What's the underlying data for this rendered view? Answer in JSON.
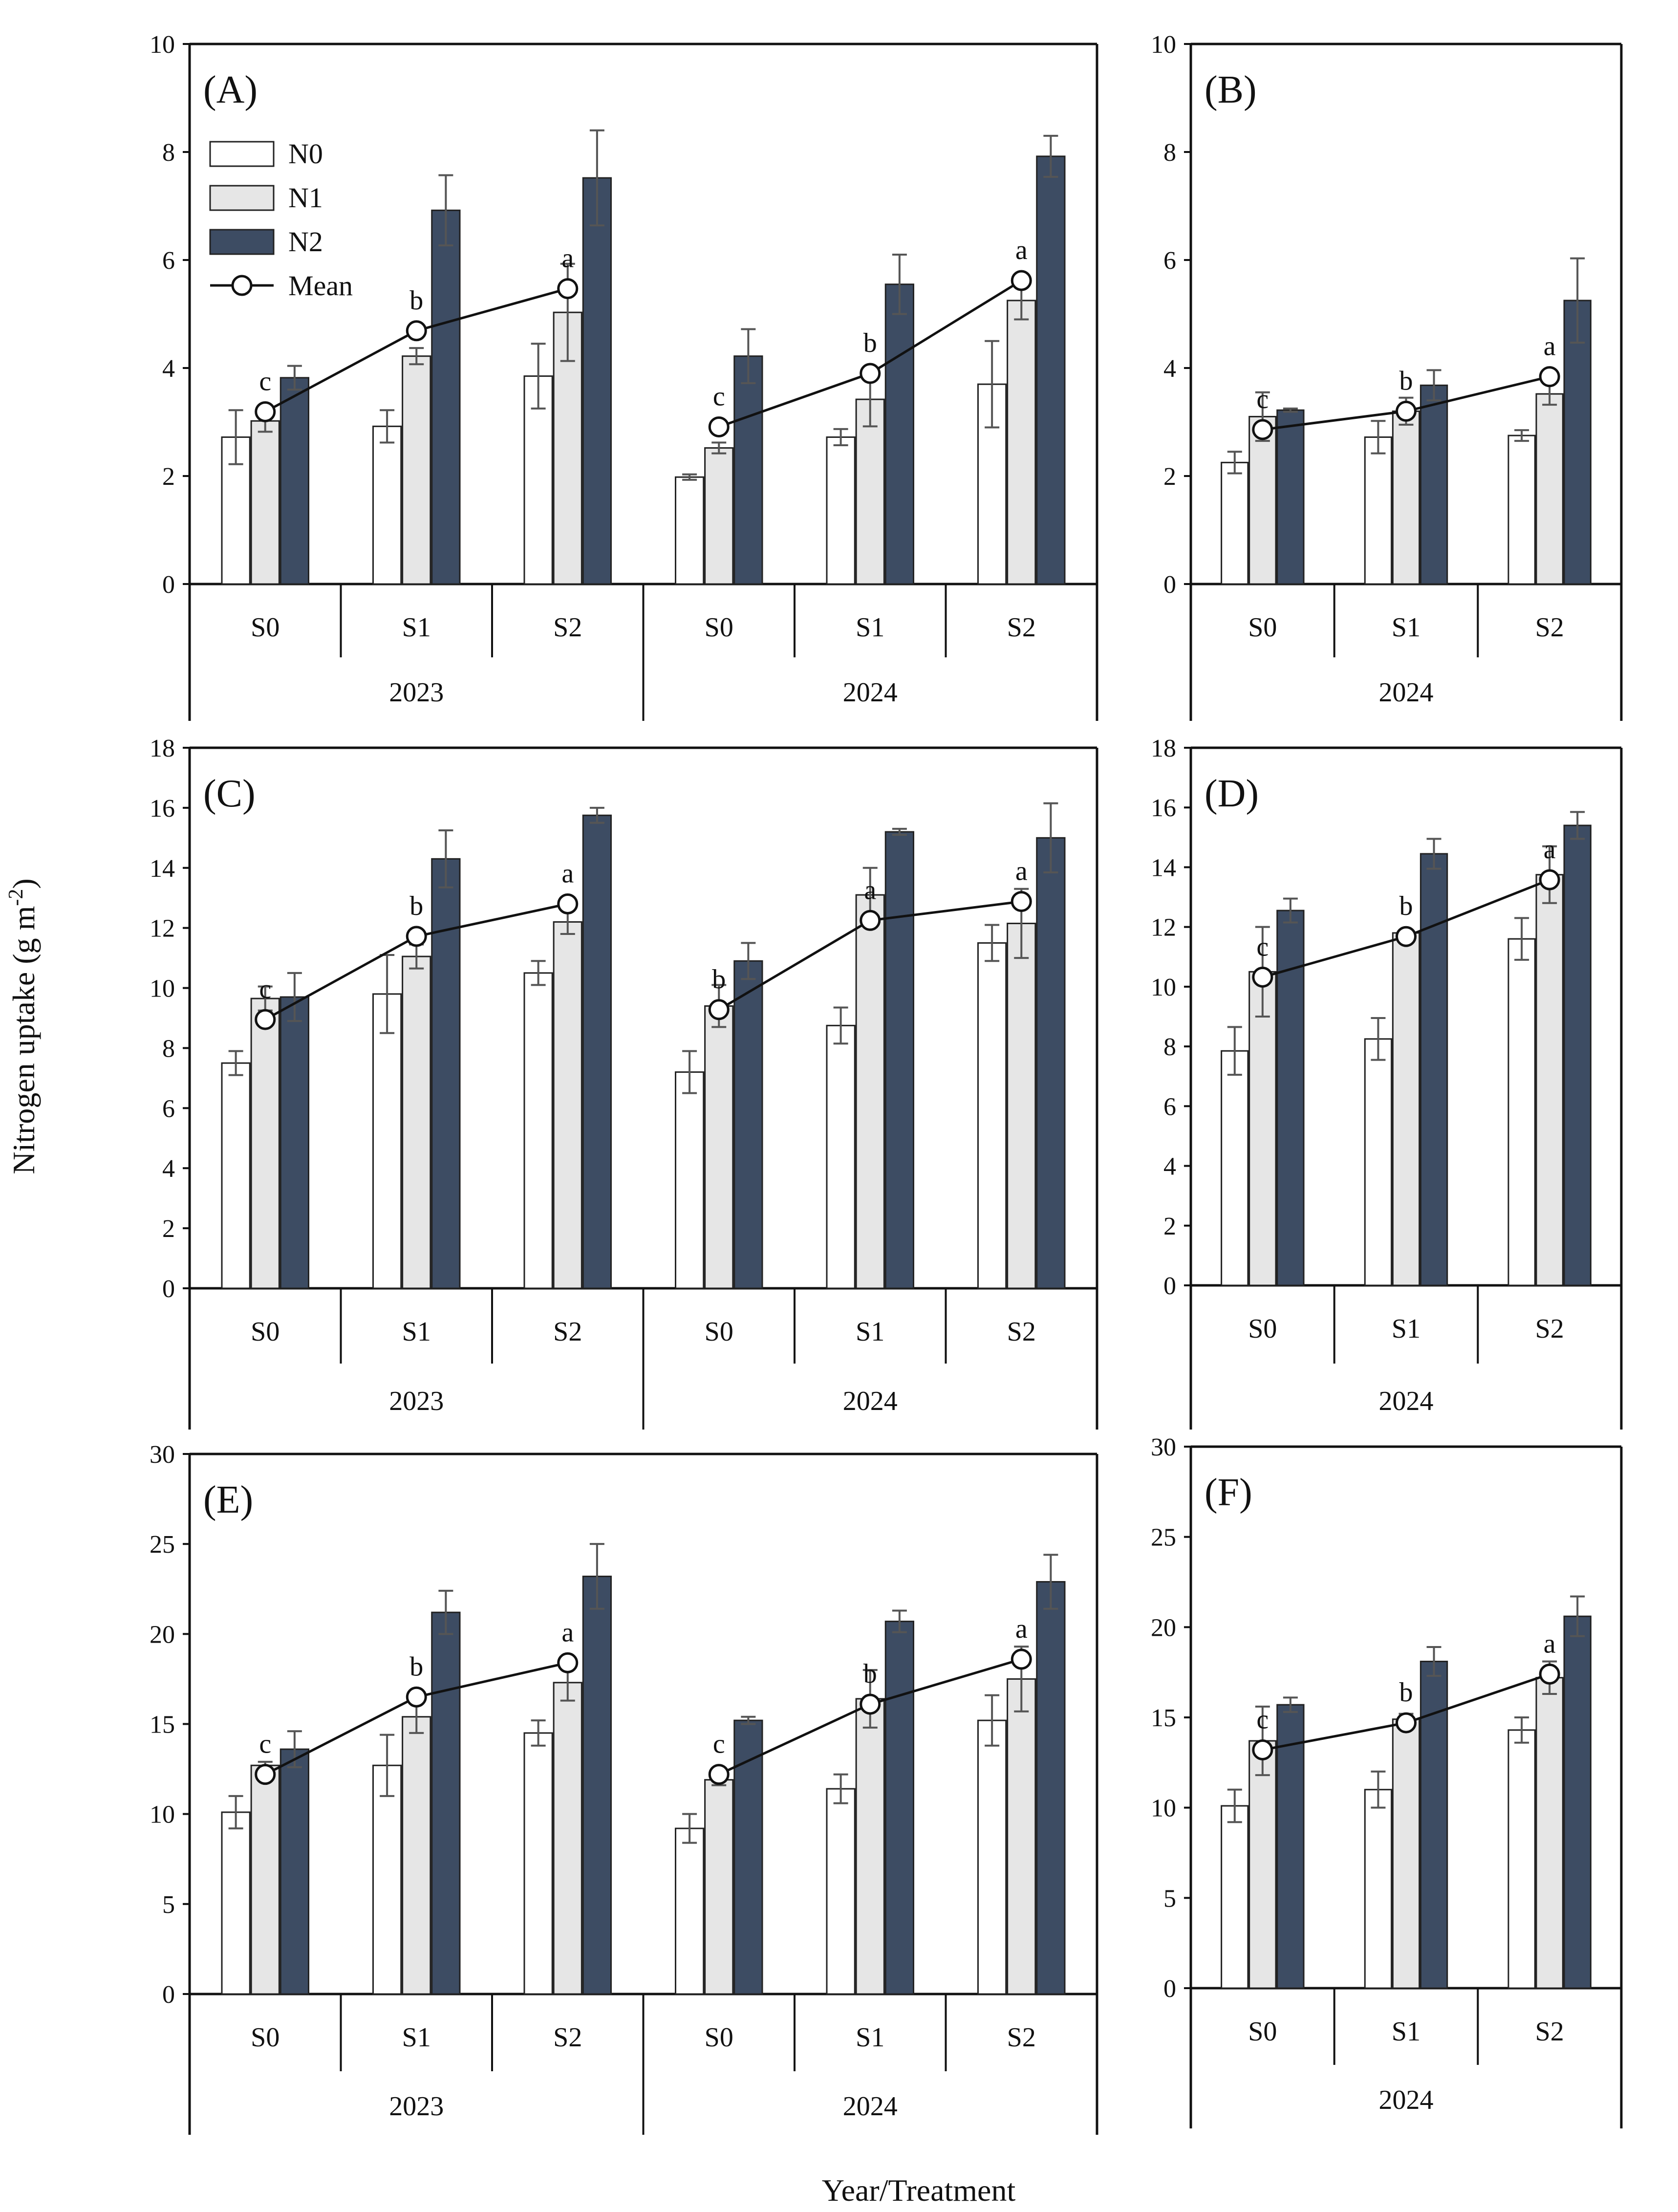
{
  "figure": {
    "ylabel": "Nitrogen uptake (g m",
    "ylabel_sup": "-2",
    "ylabel_close": ")",
    "xlabel": "Year/Treatment"
  },
  "colors": {
    "N0": "#ffffff",
    "N1": "#e6e6e6",
    "N2": "#3d4c63",
    "axis": "#111111",
    "mean_line": "#111111"
  },
  "chart_data": [
    {
      "panel": "(A)",
      "type": "bar",
      "ylim": [
        0,
        10
      ],
      "yticks": [
        0,
        2,
        4,
        6,
        8,
        10
      ],
      "legend": [
        "N0",
        "N1",
        "N2",
        "Mean"
      ],
      "groups": [
        {
          "year": "2023",
          "treatments": [
            "S0",
            "S1",
            "S2"
          ]
        },
        {
          "year": "2024",
          "treatments": [
            "S0",
            "S1",
            "S2"
          ]
        }
      ],
      "series": [
        {
          "name": "N0",
          "values": [
            2.72,
            2.92,
            3.85,
            1.98,
            2.72,
            3.7
          ],
          "errors": [
            0.5,
            0.3,
            0.6,
            0.05,
            0.15,
            0.8
          ]
        },
        {
          "name": "N1",
          "values": [
            3.02,
            4.22,
            5.03,
            2.52,
            3.42,
            5.25
          ],
          "errors": [
            0.2,
            0.15,
            0.9,
            0.1,
            0.5,
            0.35
          ]
        },
        {
          "name": "N2",
          "values": [
            3.82,
            6.92,
            7.52,
            4.22,
            5.55,
            7.92
          ],
          "errors": [
            0.22,
            0.65,
            0.88,
            0.5,
            0.55,
            0.38
          ]
        }
      ],
      "mean": {
        "name": "Mean",
        "values": [
          3.19,
          4.69,
          5.47,
          2.91,
          3.9,
          5.62
        ]
      },
      "letters": [
        "c",
        "b",
        "a",
        "c",
        "b",
        "a"
      ]
    },
    {
      "panel": "(B)",
      "type": "bar",
      "ylim": [
        0,
        10
      ],
      "yticks": [
        0,
        2,
        4,
        6,
        8,
        10
      ],
      "groups": [
        {
          "year": "2024",
          "treatments": [
            "S0",
            "S1",
            "S2"
          ]
        }
      ],
      "series": [
        {
          "name": "N0",
          "values": [
            2.25,
            2.72,
            2.75
          ],
          "errors": [
            0.2,
            0.3,
            0.1
          ]
        },
        {
          "name": "N1",
          "values": [
            3.1,
            3.2,
            3.52
          ],
          "errors": [
            0.45,
            0.25,
            0.2
          ]
        },
        {
          "name": "N2",
          "values": [
            3.22,
            3.68,
            5.25
          ],
          "errors": [
            0.03,
            0.28,
            0.78
          ]
        }
      ],
      "mean": {
        "name": "Mean",
        "values": [
          2.86,
          3.2,
          3.84
        ]
      },
      "letters": [
        "c",
        "b",
        "a"
      ]
    },
    {
      "panel": "(C)",
      "type": "bar",
      "ylim": [
        0,
        18
      ],
      "yticks": [
        0,
        2,
        4,
        6,
        8,
        10,
        12,
        14,
        16,
        18
      ],
      "groups": [
        {
          "year": "2023",
          "treatments": [
            "S0",
            "S1",
            "S2"
          ]
        },
        {
          "year": "2024",
          "treatments": [
            "S0",
            "S1",
            "S2"
          ]
        }
      ],
      "series": [
        {
          "name": "N0",
          "values": [
            7.5,
            9.8,
            10.5,
            7.2,
            8.75,
            11.5
          ],
          "errors": [
            0.4,
            1.3,
            0.4,
            0.7,
            0.6,
            0.6
          ]
        },
        {
          "name": "N1",
          "values": [
            9.65,
            11.05,
            12.2,
            9.4,
            13.1,
            12.15
          ],
          "errors": [
            0.4,
            0.4,
            0.4,
            0.7,
            0.9,
            1.15
          ]
        },
        {
          "name": "N2",
          "values": [
            9.7,
            14.3,
            15.75,
            10.9,
            15.2,
            15.0
          ],
          "errors": [
            0.8,
            0.95,
            0.25,
            0.6,
            0.1,
            1.15
          ]
        }
      ],
      "mean": {
        "name": "Mean",
        "values": [
          8.95,
          11.72,
          12.8,
          9.28,
          12.25,
          12.88
        ]
      },
      "letters": [
        "c",
        "b",
        "a",
        "b",
        "a",
        "a"
      ]
    },
    {
      "panel": "(D)",
      "type": "bar",
      "ylim": [
        0,
        18
      ],
      "yticks": [
        0,
        2,
        4,
        6,
        8,
        10,
        12,
        14,
        16,
        18
      ],
      "groups": [
        {
          "year": "2024",
          "treatments": [
            "S0",
            "S1",
            "S2"
          ]
        }
      ],
      "series": [
        {
          "name": "N0",
          "values": [
            7.85,
            8.25,
            11.6
          ],
          "errors": [
            0.8,
            0.7,
            0.7
          ]
        },
        {
          "name": "N1",
          "values": [
            10.5,
            11.8,
            13.75
          ],
          "errors": [
            1.5,
            0.1,
            0.95
          ]
        },
        {
          "name": "N2",
          "values": [
            12.55,
            14.45,
            15.4
          ],
          "errors": [
            0.4,
            0.5,
            0.45
          ]
        }
      ],
      "mean": {
        "name": "Mean",
        "values": [
          10.32,
          11.68,
          13.58
        ]
      },
      "letters": [
        "c",
        "b",
        "a"
      ]
    },
    {
      "panel": "(E)",
      "type": "bar",
      "ylim": [
        0,
        30
      ],
      "yticks": [
        0,
        5,
        10,
        15,
        20,
        25,
        30
      ],
      "groups": [
        {
          "year": "2023",
          "treatments": [
            "S0",
            "S1",
            "S2"
          ]
        },
        {
          "year": "2024",
          "treatments": [
            "S0",
            "S1",
            "S2"
          ]
        }
      ],
      "series": [
        {
          "name": "N0",
          "values": [
            10.1,
            12.7,
            14.5,
            9.2,
            11.4,
            15.2
          ],
          "errors": [
            0.9,
            1.7,
            0.7,
            0.8,
            0.8,
            1.4
          ]
        },
        {
          "name": "N1",
          "values": [
            12.7,
            15.4,
            17.3,
            11.9,
            16.4,
            17.5
          ],
          "errors": [
            0.2,
            0.9,
            1.0,
            0.3,
            1.6,
            1.8
          ]
        },
        {
          "name": "N2",
          "values": [
            13.6,
            21.2,
            23.2,
            15.2,
            20.7,
            22.9
          ],
          "errors": [
            1.0,
            1.2,
            1.8,
            0.2,
            0.6,
            1.5
          ]
        }
      ],
      "mean": {
        "name": "Mean",
        "values": [
          12.2,
          16.5,
          18.4,
          12.2,
          16.1,
          18.6
        ]
      },
      "letters": [
        "c",
        "b",
        "a",
        "c",
        "b",
        "a"
      ]
    },
    {
      "panel": "(F)",
      "type": "bar",
      "ylim": [
        0,
        30
      ],
      "yticks": [
        0,
        5,
        10,
        15,
        20,
        25,
        30
      ],
      "groups": [
        {
          "year": "2024",
          "treatments": [
            "S0",
            "S1",
            "S2"
          ]
        }
      ],
      "series": [
        {
          "name": "N0",
          "values": [
            10.1,
            11.0,
            14.3
          ],
          "errors": [
            0.9,
            1.0,
            0.7
          ]
        },
        {
          "name": "N1",
          "values": [
            13.7,
            14.9,
            17.2
          ],
          "errors": [
            1.9,
            0.3,
            0.9
          ]
        },
        {
          "name": "N2",
          "values": [
            15.7,
            18.1,
            20.6
          ],
          "errors": [
            0.4,
            0.8,
            1.1
          ]
        }
      ],
      "mean": {
        "name": "Mean",
        "values": [
          13.2,
          14.7,
          17.4
        ]
      },
      "letters": [
        "c",
        "b",
        "a"
      ]
    }
  ]
}
